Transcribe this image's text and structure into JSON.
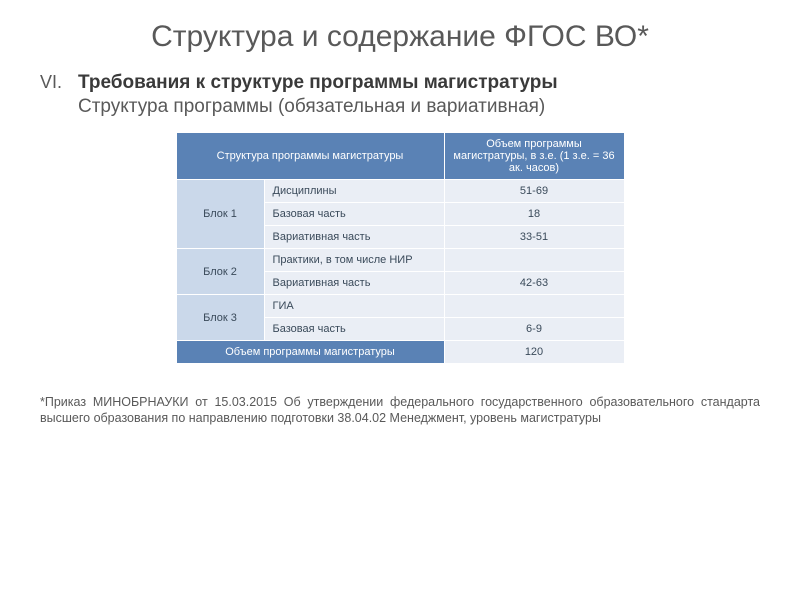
{
  "title": "Структура и содержание ФГОС ВО*",
  "section": {
    "numeral": "VI.",
    "heading": "Требования к структуре программы магистратуры",
    "subheading": "Структура программы (обязательная и вариативная)"
  },
  "table": {
    "header_left": "Структура программы магистратуры",
    "header_right": "Объем программы магистратуры, в з.е. (1 з.е. = 36 ак. часов)",
    "rows": [
      {
        "block": "Блок 1",
        "label": "Дисциплины",
        "value": "51-69"
      },
      {
        "block": "",
        "label": "Базовая часть",
        "value": "18"
      },
      {
        "block": "",
        "label": "Вариативная часть",
        "value": "33-51"
      },
      {
        "block": "Блок 2",
        "label": "Практики, в том числе НИР",
        "value": ""
      },
      {
        "block": "",
        "label": "Вариативная часть",
        "value": "42-63"
      },
      {
        "block": "Блок 3",
        "label": "ГИА",
        "value": ""
      },
      {
        "block": "",
        "label": "Базовая часть",
        "value": "6-9"
      }
    ],
    "total_label": "Объем программы магистратуры",
    "total_value": "120"
  },
  "footnote": "*Приказ МИНОБРНАУКИ от 15.03.2015 Об утверждении федерального государственного образовательного стандарта высшего образования по направлению подготовки 38.04.02 Менеджмент, уровень магистратуры",
  "colors": {
    "header_bg": "#5a82b5",
    "block_bg": "#cad8ea",
    "body_bg": "#eaeef5",
    "text_dark": "#3a3a3a",
    "text_mid": "#595959"
  }
}
